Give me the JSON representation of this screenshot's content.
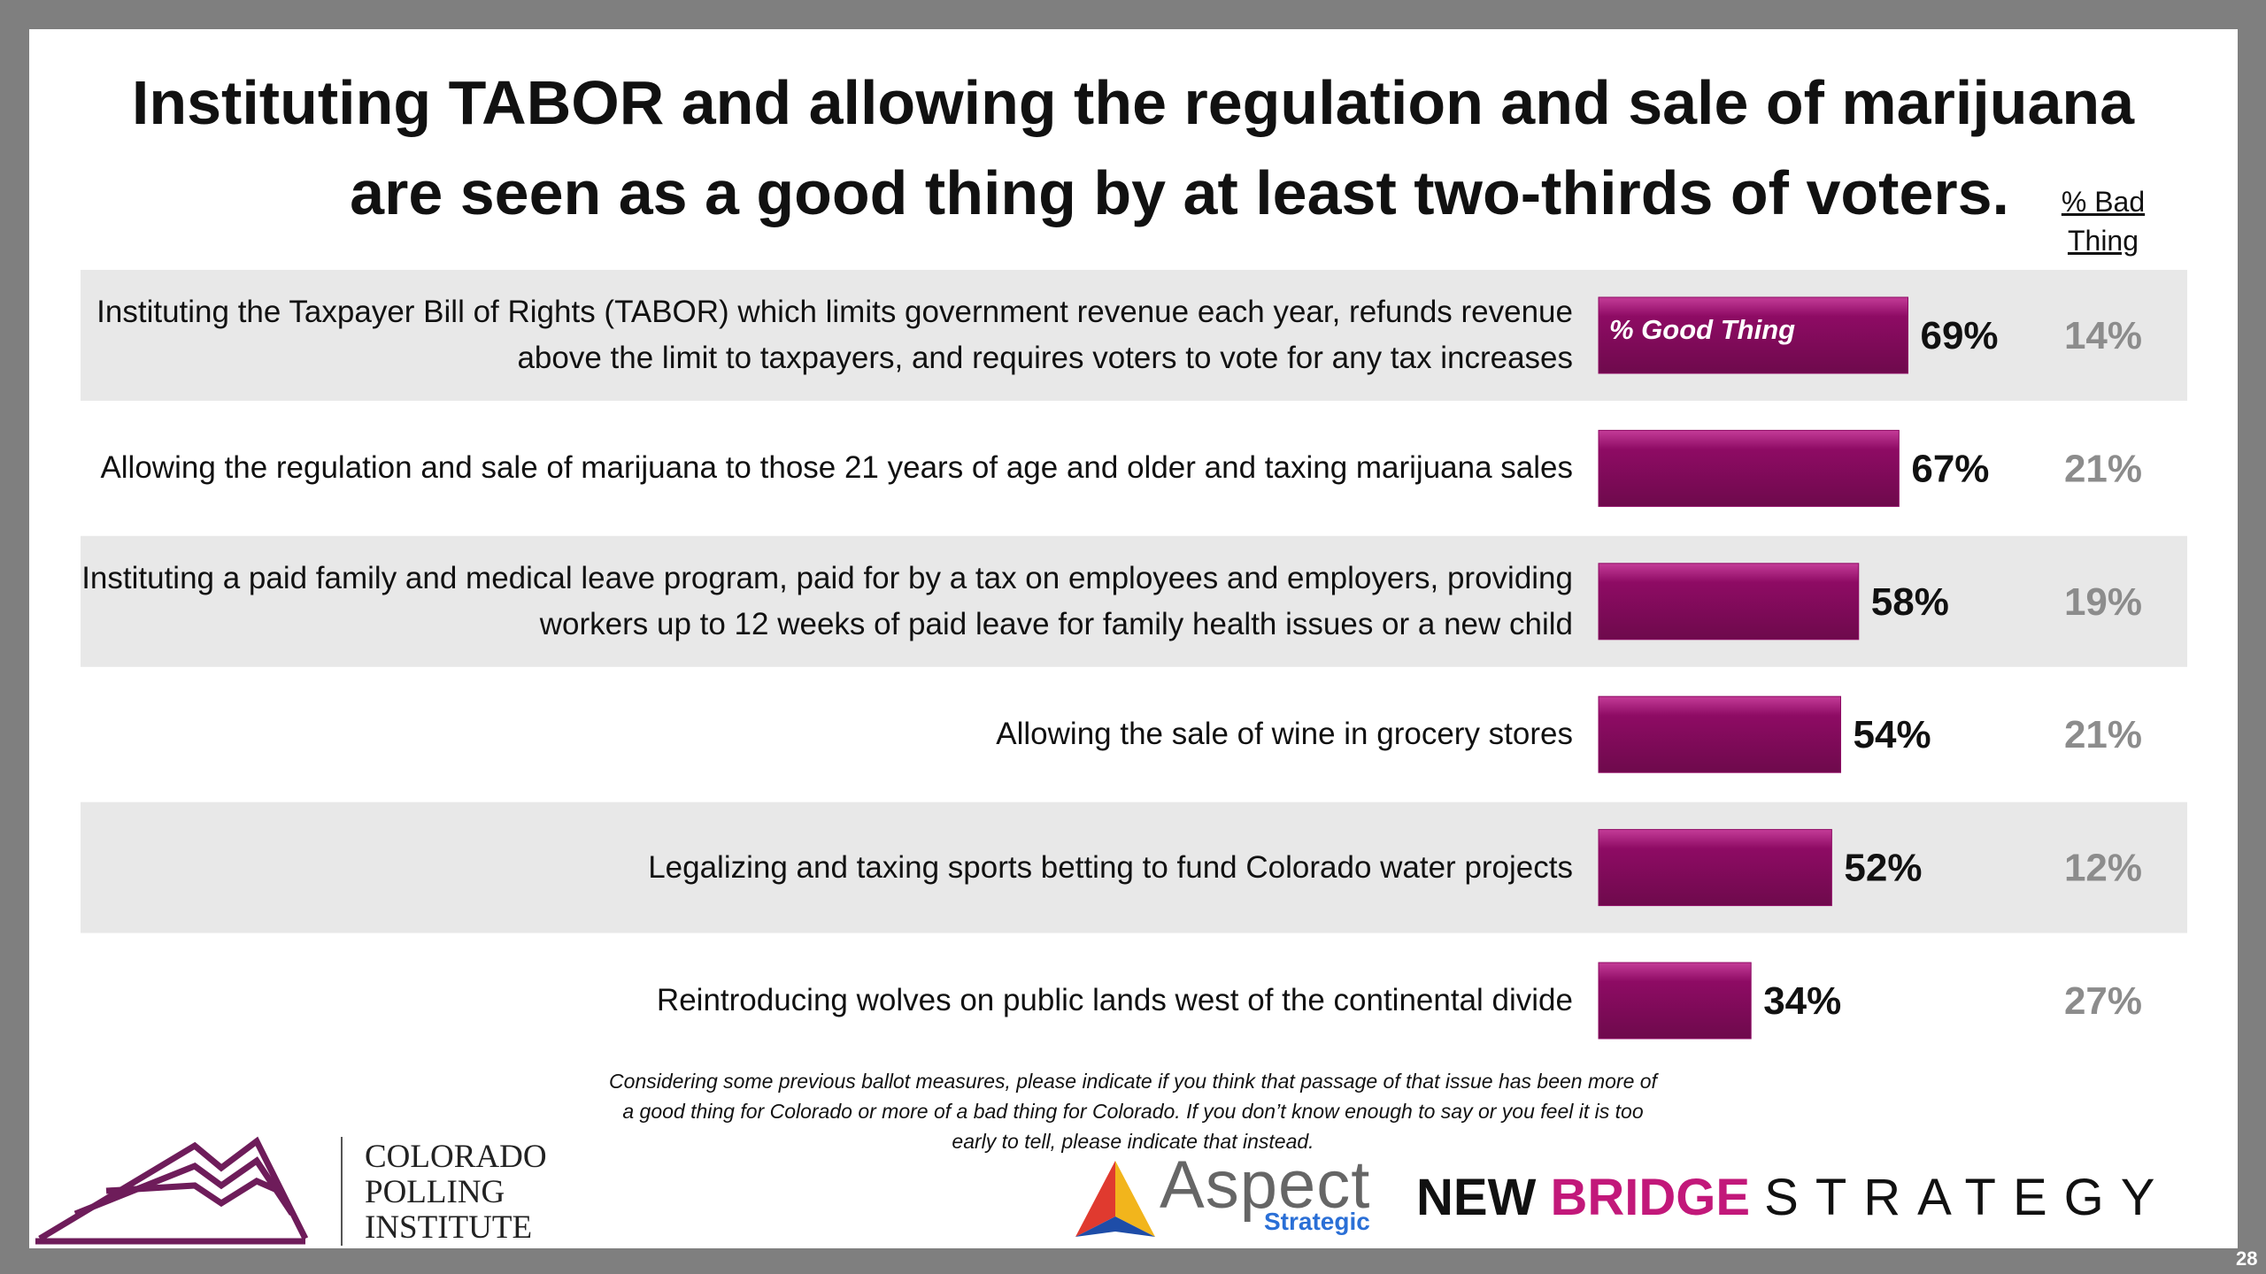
{
  "chart_data": {
    "type": "bar",
    "orientation": "horizontal",
    "title": [
      "Instituting TABOR and allowing the regulation and sale of marijuana",
      "are seen as a good thing by at least two-thirds of voters."
    ],
    "categories": [
      "Instituting the Taxpayer Bill of Rights (TABOR) which limits government revenue each year, refunds revenue above the limit to taxpayers, and requires voters to vote for any tax increases",
      "Allowing the regulation and sale of marijuana to those 21 years of age and older and taxing marijuana sales",
      "Instituting a paid family and medical leave program, paid for by a tax on employees and employers, providing workers up to 12 weeks of paid leave for family health issues or a new child",
      "Allowing the sale of wine in grocery stores",
      "Legalizing and taxing sports betting to fund Colorado water projects",
      "Reintroducing wolves on public lands west of the continental divide"
    ],
    "series": [
      {
        "name": "% Good Thing",
        "color": "#8e0b64",
        "values": [
          69,
          67,
          58,
          54,
          52,
          34
        ],
        "value_labels": [
          "69%",
          "67%",
          "58%",
          "54%",
          "52%",
          "34%"
        ]
      },
      {
        "name": "% Bad Thing",
        "color": "#8c8c8c",
        "values": [
          14,
          21,
          19,
          21,
          12,
          27
        ],
        "value_labels": [
          "14%",
          "21%",
          "19%",
          "21%",
          "12%",
          "27%"
        ]
      }
    ],
    "note": "Considering some previous ballot measures, please indicate if you think that passage of that issue has been more of a good thing for Colorado or more of a bad thing for Colorado. If you don’t know enough to say or you feel it is too early to tell, please indicate that instead."
  },
  "footer": {
    "cpi": "COLORADO POLLING INSTITUTE",
    "aspect": "Aspect",
    "aspect_sub": "Strategic",
    "nbs_1": "NEW",
    "nbs_2": "BRIDGE",
    "nbs_3": "STRATEGY",
    "page": "28"
  }
}
